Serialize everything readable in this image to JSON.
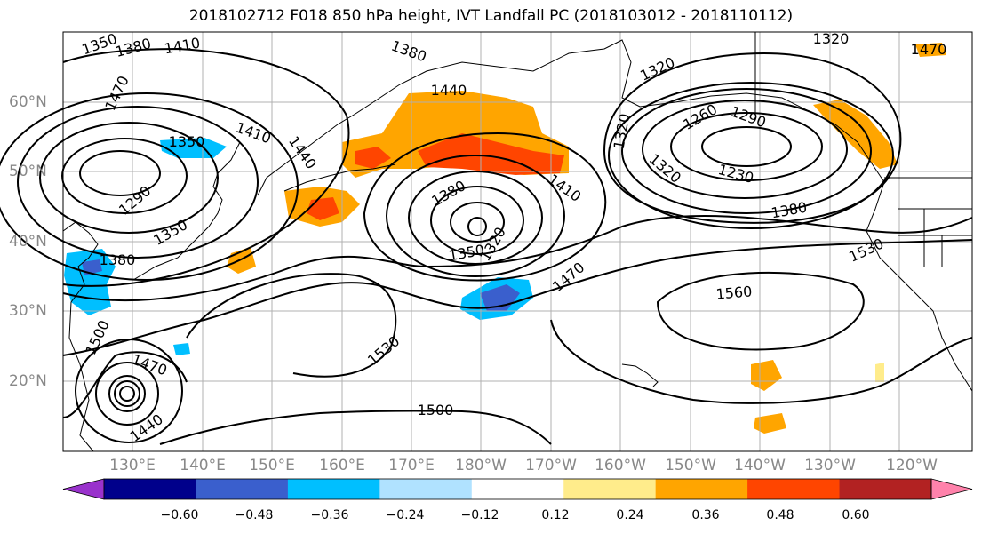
{
  "title": "2018102712 F018 850 hPa height, IVT Landfall PC (2018103012 - 2018110112)",
  "lat_labels": [
    "60°N",
    "50°N",
    "40°N",
    "30°N",
    "20°N"
  ],
  "lon_labels": [
    "130°E",
    "140°E",
    "150°E",
    "160°E",
    "170°E",
    "180°W",
    "170°W",
    "160°W",
    "150°W",
    "140°W",
    "130°W",
    "120°W"
  ],
  "contour_labels": [
    "1350",
    "1380",
    "1410",
    "1380",
    "1320",
    "1320",
    "1470",
    "1440",
    "1470",
    "1410",
    "1320",
    "1260",
    "1290",
    "1350",
    "1440",
    "1320",
    "1230",
    "1410",
    "1380",
    "1380",
    "1290",
    "1350",
    "1320",
    "1350",
    "1470",
    "1380",
    "1530",
    "1560",
    "1530",
    "1500",
    "1470",
    "1500",
    "1440"
  ],
  "colorbar": {
    "ticks": [
      "−0.60",
      "−0.48",
      "−0.36",
      "−0.24",
      "−0.12",
      "0.12",
      "0.24",
      "0.36",
      "0.48",
      "0.60"
    ],
    "colors": [
      "#9932cc",
      "#00008b",
      "#3a5fcd",
      "#00bfff",
      "#b0e2ff",
      "#ffffff",
      "#ffec8b",
      "#ffa500",
      "#ff4500",
      "#b22222",
      "#ff82ab"
    ]
  },
  "colors": {
    "ocean": "#ffffff",
    "grid": "#b0b0b0",
    "contour": "#000000",
    "tick_label": "#888888"
  }
}
